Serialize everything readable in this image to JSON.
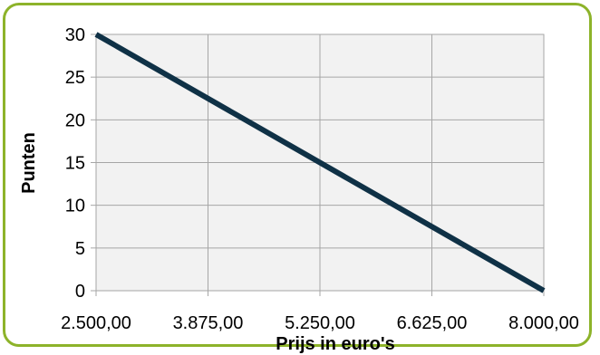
{
  "chart_data": {
    "type": "line",
    "title": "",
    "xlabel": "Prijs in euro's",
    "ylabel": "Punten",
    "x_ticks": [
      "2.500,00",
      "3.875,00",
      "5.250,00",
      "6.625,00",
      "8.000,00"
    ],
    "y_ticks": [
      "0",
      "5",
      "10",
      "15",
      "20",
      "25",
      "30"
    ],
    "xlim": [
      2500,
      8000
    ],
    "ylim": [
      0,
      30
    ],
    "grid": true,
    "legend": "none",
    "series": [
      {
        "x": [
          2500,
          8000
        ],
        "y": [
          30,
          0
        ],
        "color": "#0f3146"
      }
    ],
    "colors": {
      "plot_background": "#f2f2f2",
      "grid": "#a6a6a6",
      "frame_border": "#8db32a"
    }
  }
}
